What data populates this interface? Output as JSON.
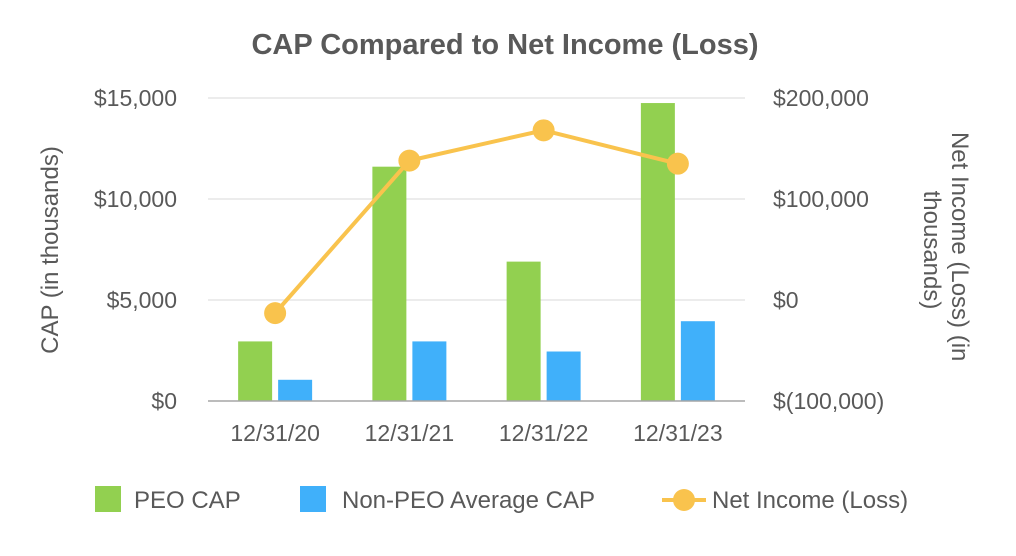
{
  "chart_data": {
    "type": "bar",
    "title": "CAP Compared to Net Income (Loss)",
    "categories": [
      "12/31/20",
      "12/31/21",
      "12/31/22",
      "12/31/23"
    ],
    "ylabel": "CAP (in thousands)",
    "y2label": "Net Income (Loss) (in thousands)",
    "ylim": [
      0,
      15000
    ],
    "y2lim": [
      -100000,
      200000
    ],
    "yticks": [
      0,
      5000,
      10000,
      15000
    ],
    "yticklabels": [
      "$0",
      "$5,000",
      "$10,000",
      "$15,000"
    ],
    "y2ticks": [
      -100000,
      0,
      100000,
      200000
    ],
    "y2ticklabels": [
      "$(100,000)",
      "$0",
      "$100,000",
      "$200,000"
    ],
    "grid": true,
    "legend_position": "bottom",
    "series": [
      {
        "name": "PEO CAP",
        "type": "bar",
        "axis": "left",
        "color": "#92d050",
        "values": [
          2950,
          11600,
          6900,
          14750
        ]
      },
      {
        "name": "Non-PEO Average CAP",
        "type": "bar",
        "axis": "left",
        "color": "#40b0fa",
        "values": [
          1050,
          2950,
          2450,
          3950
        ]
      },
      {
        "name": "Net Income (Loss)",
        "type": "line",
        "axis": "right",
        "color": "#f9c34d",
        "values": [
          -13000,
          138000,
          168000,
          135000
        ]
      }
    ]
  }
}
